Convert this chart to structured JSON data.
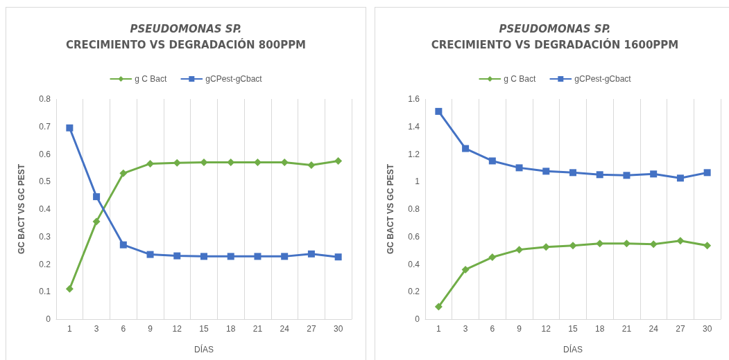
{
  "chart_data": [
    {
      "type": "line",
      "title": "PSEUDOMONAS SP.",
      "subtitle": "CRECIMIENTO VS DEGRADACIÓN 800PPM",
      "xlabel": "DÍAS",
      "ylabel": "GC BACT VS GC PEST",
      "categories": [
        "1",
        "3",
        "6",
        "9",
        "12",
        "15",
        "18",
        "21",
        "24",
        "27",
        "30"
      ],
      "series": [
        {
          "name": "g C Bact",
          "color": "#70ad47",
          "marker": "diamond",
          "values": [
            0.11,
            0.355,
            0.53,
            0.565,
            0.568,
            0.57,
            0.57,
            0.57,
            0.57,
            0.56,
            0.575
          ]
        },
        {
          "name": "gCPest-gCbact",
          "color": "#4472c4",
          "marker": "square",
          "values": [
            0.695,
            0.445,
            0.27,
            0.235,
            0.23,
            0.228,
            0.228,
            0.228,
            0.228,
            0.237,
            0.226
          ]
        }
      ],
      "ylim": [
        0,
        0.8
      ],
      "yticks": [
        0,
        0.1,
        0.2,
        0.3,
        0.4,
        0.5,
        0.6,
        0.7,
        0.8
      ],
      "grid": "x",
      "legend": "top",
      "line_style": "solid"
    },
    {
      "type": "line",
      "title": "PSEUDOMONAS SP.",
      "subtitle": "CRECIMIENTO VS DEGRADACIÓN 1600PPM",
      "xlabel": "DÍAS",
      "ylabel": "GC BACT VS GC PEST",
      "categories": [
        "1",
        "3",
        "6",
        "9",
        "12",
        "15",
        "18",
        "21",
        "24",
        "27",
        "30"
      ],
      "series": [
        {
          "name": "g C Bact",
          "color": "#70ad47",
          "marker": "diamond",
          "values": [
            0.09,
            0.36,
            0.45,
            0.505,
            0.525,
            0.535,
            0.55,
            0.55,
            0.545,
            0.57,
            0.535
          ]
        },
        {
          "name": "gCPest-gCbact",
          "color": "#4472c4",
          "marker": "square",
          "values": [
            1.51,
            1.24,
            1.15,
            1.1,
            1.075,
            1.065,
            1.05,
            1.045,
            1.055,
            1.025,
            1.065
          ]
        }
      ],
      "ylim": [
        0,
        1.6
      ],
      "yticks": [
        0,
        0.2,
        0.4,
        0.6,
        0.8,
        1,
        1.2,
        1.4,
        1.6
      ],
      "grid": "x",
      "legend": "top",
      "line_style": "solid"
    }
  ]
}
